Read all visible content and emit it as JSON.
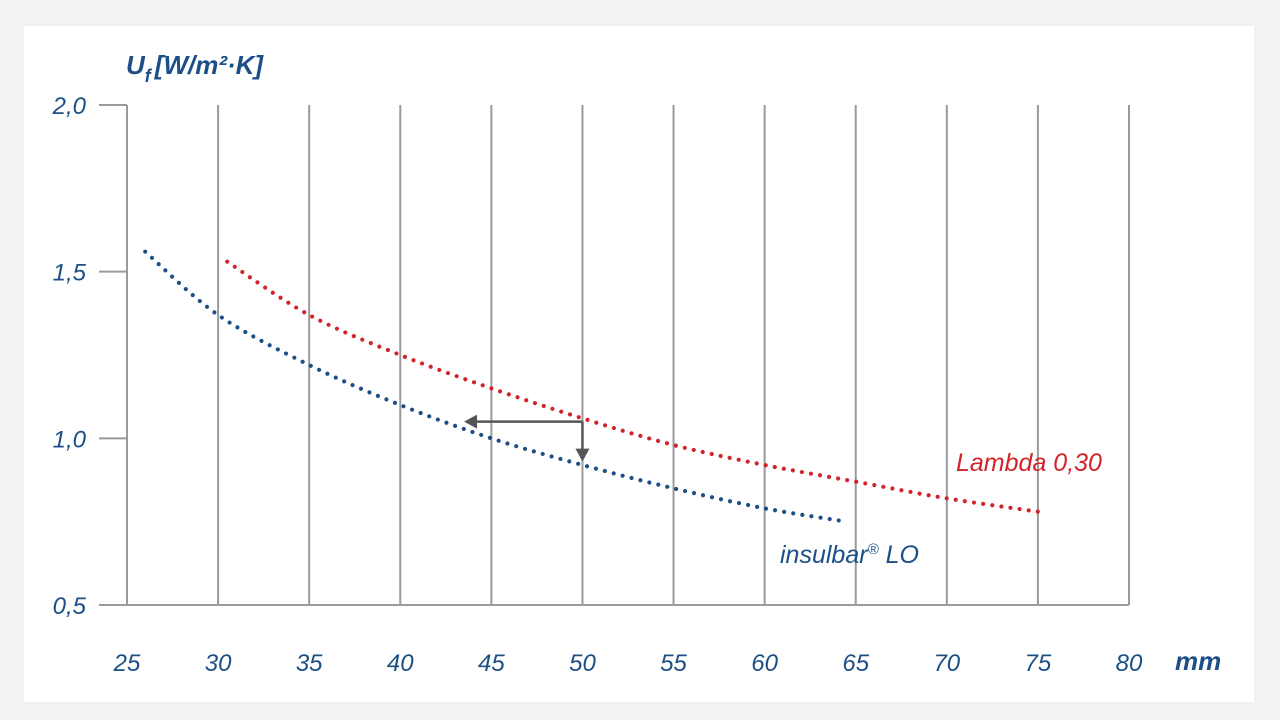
{
  "chart_data": {
    "type": "line",
    "xunit": "mm",
    "ylabel_main": "U",
    "ylabel_sub": "f",
    "ylabel_unit": "[W/m²·K]",
    "xlim": [
      25,
      80
    ],
    "ylim": [
      0.5,
      2.0
    ],
    "xticks": [
      25,
      30,
      35,
      40,
      45,
      50,
      55,
      60,
      65,
      70,
      75,
      80
    ],
    "yticks": [
      {
        "value": 0.5,
        "label": "0,5"
      },
      {
        "value": 1.0,
        "label": "1,0"
      },
      {
        "value": 1.5,
        "label": "1,5"
      },
      {
        "value": 2.0,
        "label": "2,0"
      }
    ],
    "grid": "vertical",
    "series": [
      {
        "name": "Lambda 0,30",
        "color": "#d2232a",
        "style": "dotted",
        "x": [
          30.5,
          35,
          40,
          45,
          50,
          55,
          60,
          65,
          70,
          75
        ],
        "y": [
          1.53,
          1.37,
          1.25,
          1.15,
          1.06,
          0.98,
          0.92,
          0.87,
          0.82,
          0.78
        ]
      },
      {
        "name": "insulbar® LO",
        "color": "#1c4f86",
        "style": "dotted",
        "x": [
          26,
          30,
          35,
          40,
          45,
          50,
          55,
          60,
          64.5
        ],
        "y": [
          1.56,
          1.37,
          1.22,
          1.1,
          1.0,
          0.92,
          0.85,
          0.79,
          0.75
        ]
      }
    ],
    "annotation": {
      "from_x": 50,
      "to_x_left": 43.5,
      "arrow_y": 1.05,
      "drop_to_y": 0.93,
      "color": "#555555"
    },
    "labels": {
      "lambda": "Lambda 0,30",
      "insulbar": "insulbar",
      "insulbar_mark": "®",
      "insulbar_suffix": " LO"
    }
  }
}
